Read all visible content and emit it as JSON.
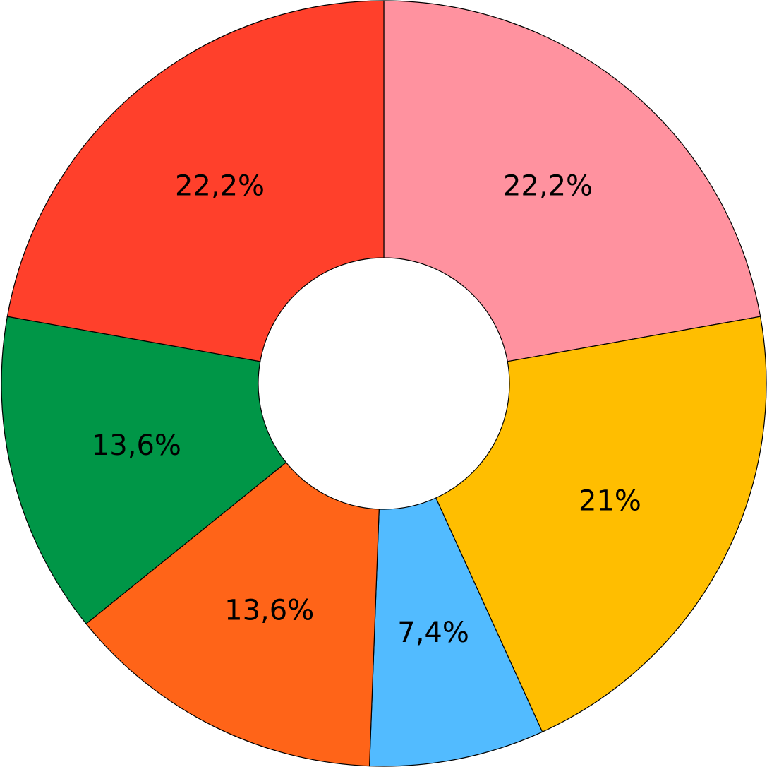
{
  "chart_data": {
    "type": "donut",
    "values": [
      22.2,
      21,
      7.4,
      13.6,
      13.6,
      22.2
    ],
    "value_labels": [
      "22,2%",
      "21%",
      "7,4%",
      "13,6%",
      "13,6%",
      "22,2%"
    ],
    "colors": [
      "#ff929f",
      "#ffbe00",
      "#52bbff",
      "#ff6418",
      "#009647",
      "#ff402b"
    ]
  }
}
